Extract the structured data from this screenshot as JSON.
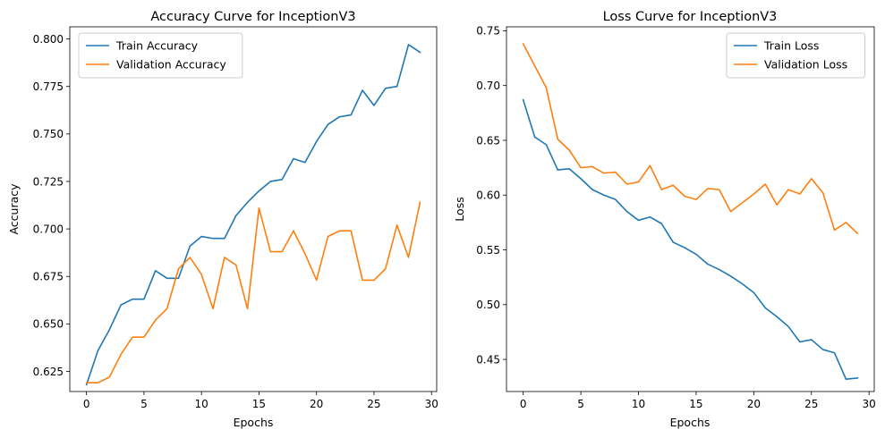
{
  "chart_data": [
    {
      "type": "line",
      "title": "Accuracy Curve for InceptionV3",
      "xlabel": "Epochs",
      "ylabel": "Accuracy",
      "xlim": [
        -1.45,
        30.45
      ],
      "ylim": [
        0.6144,
        0.8064
      ],
      "xticks": [
        0,
        5,
        10,
        15,
        20,
        25,
        30
      ],
      "yticks": [
        0.625,
        0.65,
        0.675,
        0.7,
        0.725,
        0.75,
        0.775,
        0.8
      ],
      "ytick_labels": [
        "0.625",
        "0.650",
        "0.675",
        "0.700",
        "0.725",
        "0.750",
        "0.775",
        "0.800"
      ],
      "legend_position": "upper-left",
      "x": [
        0,
        1,
        2,
        3,
        4,
        5,
        6,
        7,
        8,
        9,
        10,
        11,
        12,
        13,
        14,
        15,
        16,
        17,
        18,
        19,
        20,
        21,
        22,
        23,
        24,
        25,
        26,
        27,
        28,
        29
      ],
      "series": [
        {
          "name": "Train Accuracy",
          "color": "#1f77b4",
          "values": [
            0.618,
            0.636,
            0.647,
            0.66,
            0.663,
            0.663,
            0.678,
            0.674,
            0.674,
            0.691,
            0.696,
            0.695,
            0.695,
            0.707,
            0.714,
            0.72,
            0.725,
            0.726,
            0.737,
            0.735,
            0.746,
            0.755,
            0.759,
            0.76,
            0.773,
            0.765,
            0.774,
            0.775,
            0.797,
            0.793
          ]
        },
        {
          "name": "Validation Accuracy",
          "color": "#ff7f0e",
          "values": [
            0.619,
            0.619,
            0.622,
            0.634,
            0.643,
            0.643,
            0.652,
            0.658,
            0.679,
            0.685,
            0.676,
            0.658,
            0.685,
            0.681,
            0.658,
            0.711,
            0.688,
            0.688,
            0.699,
            0.687,
            0.673,
            0.696,
            0.699,
            0.699,
            0.673,
            0.673,
            0.679,
            0.702,
            0.685,
            0.714
          ]
        }
      ]
    },
    {
      "type": "line",
      "title": "Loss Curve for InceptionV3",
      "xlabel": "Epochs",
      "ylabel": "Loss",
      "xlim": [
        -1.45,
        30.45
      ],
      "ylim": [
        0.4207,
        0.7536
      ],
      "xticks": [
        0,
        5,
        10,
        15,
        20,
        25,
        30
      ],
      "yticks": [
        0.45,
        0.5,
        0.55,
        0.6,
        0.65,
        0.7,
        0.75
      ],
      "ytick_labels": [
        "0.45",
        "0.50",
        "0.55",
        "0.60",
        "0.65",
        "0.70",
        "0.75"
      ],
      "legend_position": "upper-right",
      "x": [
        0,
        1,
        2,
        3,
        4,
        5,
        6,
        7,
        8,
        9,
        10,
        11,
        12,
        13,
        14,
        15,
        16,
        17,
        18,
        19,
        20,
        21,
        22,
        23,
        24,
        25,
        26,
        27,
        28,
        29
      ],
      "series": [
        {
          "name": "Train Loss",
          "color": "#1f77b4",
          "values": [
            0.687,
            0.653,
            0.646,
            0.623,
            0.624,
            0.615,
            0.605,
            0.6,
            0.596,
            0.585,
            0.577,
            0.58,
            0.574,
            0.557,
            0.552,
            0.546,
            0.537,
            0.532,
            0.526,
            0.519,
            0.511,
            0.497,
            0.489,
            0.48,
            0.466,
            0.468,
            0.459,
            0.456,
            0.432,
            0.433
          ]
        },
        {
          "name": "Validation Loss",
          "color": "#ff7f0e",
          "values": [
            0.738,
            0.718,
            0.698,
            0.651,
            0.641,
            0.625,
            0.626,
            0.62,
            0.621,
            0.61,
            0.612,
            0.627,
            0.605,
            0.609,
            0.599,
            0.596,
            0.606,
            0.605,
            0.585,
            0.593,
            0.601,
            0.61,
            0.591,
            0.605,
            0.601,
            0.615,
            0.602,
            0.568,
            0.575,
            0.565
          ]
        }
      ]
    }
  ]
}
